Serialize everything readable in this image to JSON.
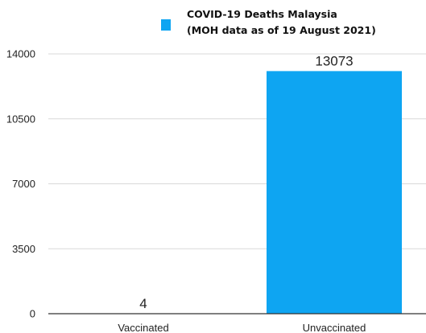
{
  "chart_data": {
    "type": "bar",
    "categories": [
      "Vaccinated",
      "Unvaccinated"
    ],
    "values": [
      4,
      13073
    ],
    "series": [
      {
        "name": "COVID-19 Deaths Malaysia (MOH data as of 19 August 2021)",
        "values": [
          4,
          13073
        ]
      }
    ],
    "legend_lines": [
      "COVID-19 Deaths Malaysia",
      "(MOH data as of 19 August 2021)"
    ],
    "data_labels": [
      "4",
      "13073"
    ],
    "yticks": [
      0,
      3500,
      7000,
      10500,
      14000
    ],
    "ylim": [
      0,
      14000
    ],
    "grid": true,
    "legend_position": "top-center",
    "bar_color": "#0ea5f2"
  }
}
